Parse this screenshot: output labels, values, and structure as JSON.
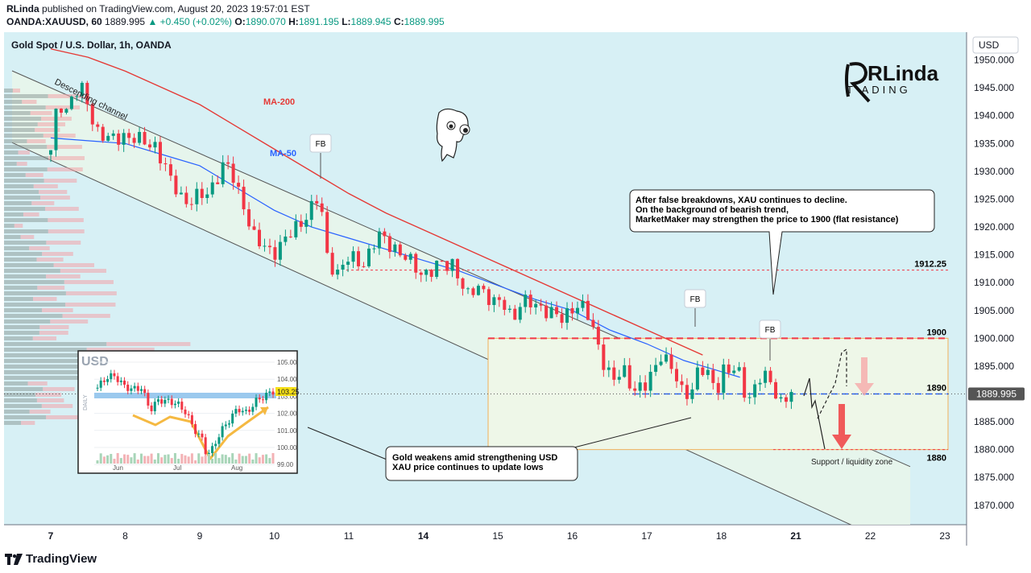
{
  "header": {
    "author": "RLinda",
    "published": "published on TradingView.com, August 20, 2023 19:57:01 EST",
    "symbol": "OANDA:XAUUSD, 60",
    "last": "1889.995",
    "change": "▲ +0.450 (+0.02%)",
    "o_label": "O:",
    "o_value": "1890.070",
    "h_label": "H:",
    "h_value": "1891.195",
    "l_label": "L:",
    "l_value": "1889.945",
    "c_label": "C:",
    "c_value": "1889.995"
  },
  "chart_title": "Gold Spot / U.S. Dollar, 1h, OANDA",
  "currency_button": "USD",
  "branding": {
    "logo_main": "RLinda",
    "logo_sub": "T  ADING"
  },
  "footer": {
    "brand": "TradingView"
  },
  "colors": {
    "up": "#089981",
    "down": "#f23645",
    "ma50": "#2962ff",
    "ma200": "#e53935",
    "channel_fill": "#e8f5ea",
    "bg": "#d7f0f5",
    "zone_border": "#f0b05a"
  },
  "chart_data": {
    "type": "candlestick",
    "instrument": "XAUUSD",
    "timeframe": "1h",
    "y_ticks": [
      1870,
      1875,
      1880,
      1885,
      1890,
      1895,
      1900,
      1905,
      1910,
      1915,
      1920,
      1925,
      1930,
      1935,
      1940,
      1945,
      1950
    ],
    "y_tick_labels": [
      "1870.000",
      "1875.000",
      "1880.000",
      "1885.000",
      "1890.000",
      "1895.000",
      "1900.000",
      "1905.000",
      "1910.000",
      "1915.000",
      "1920.000",
      "1925.000",
      "1930.000",
      "1935.000",
      "1940.000",
      "1945.000",
      "1950.000"
    ],
    "ylim": [
      1866.5,
      1955
    ],
    "x_labels": [
      "7",
      "8",
      "9",
      "10",
      "11",
      "14",
      "15",
      "16",
      "17",
      "18",
      "21",
      "22",
      "23"
    ],
    "x_bold": [
      "7",
      "14",
      "21"
    ],
    "last_price": "1889.995",
    "levels": [
      {
        "label": "1912.25",
        "value": 1912.25
      },
      {
        "label": "1900",
        "value": 1900
      },
      {
        "label": "1890",
        "value": 1890
      },
      {
        "label": "1880",
        "value": 1880
      }
    ],
    "close_path": [
      [
        7.0,
        1933
      ],
      [
        7.1,
        1943
      ],
      [
        7.2,
        1941
      ],
      [
        7.3,
        1944
      ],
      [
        7.45,
        1944
      ],
      [
        7.6,
        1938
      ],
      [
        7.8,
        1935
      ],
      [
        8.0,
        1937
      ],
      [
        8.2,
        1935
      ],
      [
        8.4,
        1935
      ],
      [
        8.5,
        1932
      ],
      [
        8.6,
        1928
      ],
      [
        8.8,
        1925
      ],
      [
        9.0,
        1925
      ],
      [
        9.1,
        1926
      ],
      [
        9.3,
        1931
      ],
      [
        9.4,
        1930
      ],
      [
        9.6,
        1924
      ],
      [
        9.75,
        1917
      ],
      [
        9.9,
        1916
      ],
      [
        10.0,
        1916
      ],
      [
        10.2,
        1918
      ],
      [
        10.4,
        1922
      ],
      [
        10.6,
        1925
      ],
      [
        10.65,
        1921
      ],
      [
        10.7,
        1915
      ],
      [
        10.85,
        1912
      ],
      [
        11.0,
        1914
      ],
      [
        11.2,
        1914
      ],
      [
        11.4,
        1918
      ],
      [
        11.6,
        1917
      ],
      [
        11.7,
        1915
      ],
      [
        11.85,
        1913
      ],
      [
        12.0,
        1912
      ],
      [
        12.1,
        1912
      ],
      [
        12.25,
        1913
      ],
      [
        12.4,
        1914
      ],
      [
        12.5,
        1910
      ],
      [
        12.6,
        1907
      ],
      [
        12.75,
        1910
      ],
      [
        12.85,
        1908
      ],
      [
        12.95,
        1906
      ],
      [
        13.1,
        1906
      ],
      [
        13.2,
        1904
      ],
      [
        13.3,
        1906
      ],
      [
        13.4,
        1906
      ],
      [
        13.6,
        1906
      ],
      [
        13.75,
        1904
      ],
      [
        13.85,
        1903
      ],
      [
        14.0,
        1906
      ],
      [
        14.1,
        1906
      ],
      [
        14.2,
        1904
      ],
      [
        14.35,
        1899
      ],
      [
        14.45,
        1895
      ],
      [
        14.55,
        1892
      ],
      [
        14.7,
        1894
      ],
      [
        14.85,
        1891
      ],
      [
        15.0,
        1891
      ],
      [
        15.2,
        1898
      ],
      [
        15.35,
        1894
      ],
      [
        15.45,
        1890
      ],
      [
        15.6,
        1891
      ],
      [
        15.7,
        1895
      ],
      [
        15.8,
        1893
      ],
      [
        15.95,
        1891
      ],
      [
        16.0,
        1895
      ],
      [
        16.15,
        1894
      ],
      [
        16.25,
        1893
      ],
      [
        16.35,
        1889
      ],
      [
        16.5,
        1893
      ],
      [
        16.65,
        1892
      ],
      [
        16.8,
        1889
      ],
      [
        16.9,
        1890
      ],
      [
        17.0,
        1890
      ]
    ],
    "moving_averages": [
      {
        "name": "MA-50",
        "points": [
          [
            7.0,
            1936
          ],
          [
            7.5,
            1935.5
          ],
          [
            8.0,
            1935
          ],
          [
            8.5,
            1933
          ],
          [
            9.0,
            1931
          ],
          [
            9.5,
            1927
          ],
          [
            10.0,
            1923
          ],
          [
            10.5,
            1920
          ],
          [
            11.0,
            1918
          ],
          [
            11.5,
            1916
          ],
          [
            12.0,
            1914
          ],
          [
            12.5,
            1912
          ],
          [
            13.0,
            1909.5
          ],
          [
            13.5,
            1907
          ],
          [
            14.0,
            1905
          ],
          [
            14.5,
            1901.5
          ],
          [
            15.0,
            1899
          ],
          [
            15.5,
            1896
          ],
          [
            16.0,
            1894
          ],
          [
            16.25,
            1893
          ]
        ]
      },
      {
        "name": "MA-200",
        "points": [
          [
            7.0,
            1952
          ],
          [
            7.5,
            1950.5
          ],
          [
            8.0,
            1948
          ],
          [
            8.5,
            1945
          ],
          [
            9.0,
            1942
          ],
          [
            9.5,
            1938
          ],
          [
            10.0,
            1934
          ],
          [
            10.5,
            1930
          ],
          [
            11.0,
            1926
          ],
          [
            11.5,
            1922.5
          ],
          [
            12.0,
            1919.5
          ],
          [
            12.5,
            1916.5
          ],
          [
            13.0,
            1913.5
          ],
          [
            13.5,
            1910.5
          ],
          [
            14.0,
            1907.5
          ],
          [
            14.5,
            1904.5
          ],
          [
            15.0,
            1901.5
          ],
          [
            15.5,
            1898.5
          ],
          [
            15.75,
            1897
          ]
        ]
      }
    ],
    "channel": {
      "label": "Descending channel",
      "upper": [
        [
          7.0,
          1945
        ],
        [
          17.0,
          1886
        ]
      ],
      "lower": [
        [
          7.0,
          1932
        ],
        [
          17.0,
          1871
        ]
      ]
    },
    "annotations": [
      {
        "id": "fb1",
        "text": "FB"
      },
      {
        "id": "fb2",
        "text": "FB"
      },
      {
        "id": "fb3",
        "text": "FB"
      },
      {
        "id": "callout1",
        "lines": [
          "After false breakdowns, XAU continues to decline.",
          "On the background of bearish trend,",
          "MarketMaker may strengthen the price to 1900 (flat resistance)"
        ]
      },
      {
        "id": "callout2",
        "lines": [
          "Gold weakens amid strengthening USD",
          "XAU price continues to update lows"
        ]
      },
      {
        "id": "support",
        "text": "Support / liquidity zone"
      }
    ],
    "inset": {
      "title": "USD",
      "timeframe": "DAILY",
      "x_labels": [
        "Jun",
        "Jul",
        "Aug"
      ],
      "y_ticks": [
        "105.00",
        "104.00",
        "103.00",
        "102.00",
        "101.00",
        "100.00",
        "99.00"
      ],
      "last": "103.25",
      "path": [
        [
          0,
          103.5
        ],
        [
          0.05,
          104.1
        ],
        [
          0.1,
          104.2
        ],
        [
          0.15,
          103.6
        ],
        [
          0.2,
          103.4
        ],
        [
          0.25,
          103.5
        ],
        [
          0.3,
          102.2
        ],
        [
          0.35,
          102.8
        ],
        [
          0.45,
          102.6
        ],
        [
          0.5,
          102.1
        ],
        [
          0.55,
          101.1
        ],
        [
          0.6,
          100.4
        ],
        [
          0.62,
          99.6
        ],
        [
          0.65,
          99.8
        ],
        [
          0.7,
          100.9
        ],
        [
          0.75,
          101.6
        ],
        [
          0.8,
          102.3
        ],
        [
          0.85,
          102.0
        ],
        [
          0.9,
          102.7
        ],
        [
          0.95,
          103.0
        ],
        [
          1.0,
          103.3
        ]
      ]
    }
  }
}
